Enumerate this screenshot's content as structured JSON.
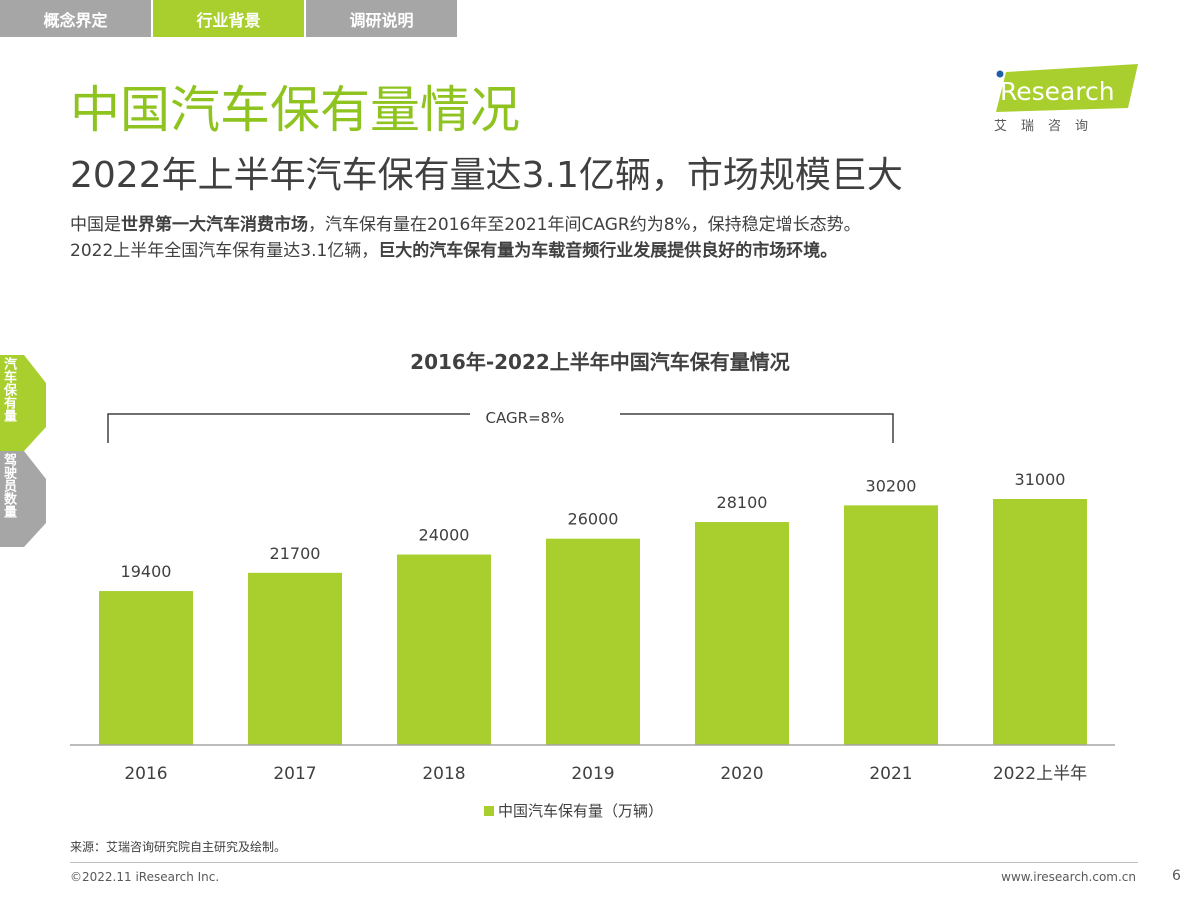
{
  "tabs": [
    {
      "label": "概念界定",
      "active": false
    },
    {
      "label": "行业背景",
      "active": true
    },
    {
      "label": "调研说明",
      "active": false
    }
  ],
  "title": "中国汽车保有量情况",
  "subtitle": "2022年上半年汽车保有量达3.1亿辆，市场规模巨大",
  "desc": {
    "l1a": "中国是",
    "l1b": "世界第一大汽车消费市场",
    "l1c": "，汽车保有量在2016年至2021年间CAGR约为8%，保持稳定增长态势。",
    "l2a": "2022上半年全国汽车保有量达3.1亿辆，",
    "l2b": "巨大的汽车保有量为车载音频行业发展提供良好的市场环境。"
  },
  "logo": {
    "brand": "iResearch",
    "cn": "艾 瑞 咨 询"
  },
  "side_tabs": [
    {
      "label": "汽车保有量",
      "active": true
    },
    {
      "label": "驾驶员数量",
      "active": false
    }
  ],
  "colors": {
    "accent": "#a8cf2d",
    "title": "#8fc31f",
    "tab_inactive": "#a6a6a6"
  },
  "chart_data": {
    "type": "bar",
    "title": "2016年-2022上半年中国汽车保有量情况",
    "categories": [
      "2016",
      "2017",
      "2018",
      "2019",
      "2020",
      "2021",
      "2022上半年"
    ],
    "series": [
      {
        "name": "中国汽车保有量（万辆）",
        "values": [
          19400,
          21700,
          24000,
          26000,
          28100,
          30200,
          31000
        ]
      }
    ],
    "annotation": "CAGR=8%",
    "legend": "bottom",
    "grid": false
  },
  "source": "来源：艾瑞咨询研究院自主研究及绘制。",
  "footer": {
    "copyright": "©2022.11 iResearch Inc.",
    "url": "www.iresearch.com.cn",
    "page": "6"
  }
}
